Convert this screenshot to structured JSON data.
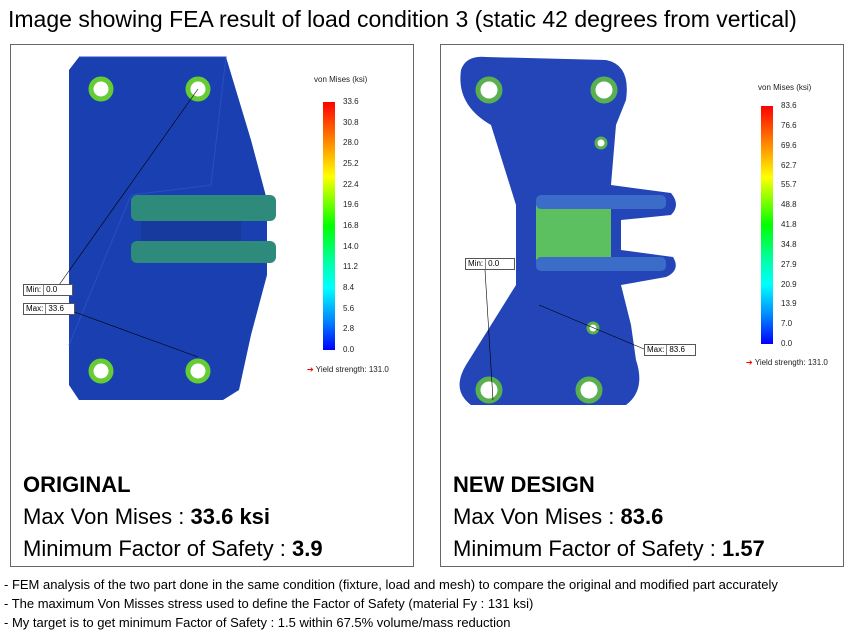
{
  "title": "Image showing FEA result of load condition 3 (static 42 degrees from vertical)",
  "original": {
    "legend_title": "von Mises (ksi)",
    "ticks": [
      "33.6",
      "30.8",
      "28.0",
      "25.2",
      "22.4",
      "19.6",
      "16.8",
      "14.0",
      "11.2",
      "8.4",
      "5.6",
      "2.8",
      "0.0"
    ],
    "yield": "Yield strength: 131.0",
    "min_label": "Min:",
    "min_value": "0.0",
    "max_label": "Max:",
    "max_value": "33.6",
    "heading": "ORIGINAL",
    "max_prefix": "Max Von Mises : ",
    "max_vm": "33.6 ksi",
    "fos_prefix": "Minimum Factor of Safety : ",
    "fos": "3.9"
  },
  "new_design": {
    "legend_title": "von Mises (ksi)",
    "ticks": [
      "83.6",
      "76.6",
      "69.6",
      "62.7",
      "55.7",
      "48.8",
      "41.8",
      "34.8",
      "27.9",
      "20.9",
      "13.9",
      "7.0",
      "0.0"
    ],
    "yield": "Yield strength: 131.0",
    "min_label": "Min:",
    "min_value": "0.0",
    "max_label": "Max:",
    "max_value": "83.6",
    "heading": "NEW DESIGN",
    "max_prefix": "Max Von Mises : ",
    "max_vm": "83.6",
    "fos_prefix": "Minimum Factor of Safety : ",
    "fos": "1.57"
  },
  "notes": [
    "- FEM analysis of the two part done in the same condition (fixture, load and mesh) to compare the original and modified part accurately",
    "- The maximum Von Misses stress used to define the Factor of Safety (material Fy : 131 ksi)",
    "- My target is to get minimum Factor of Safety : 1.5 within 67.5% volume/mass reduction"
  ]
}
